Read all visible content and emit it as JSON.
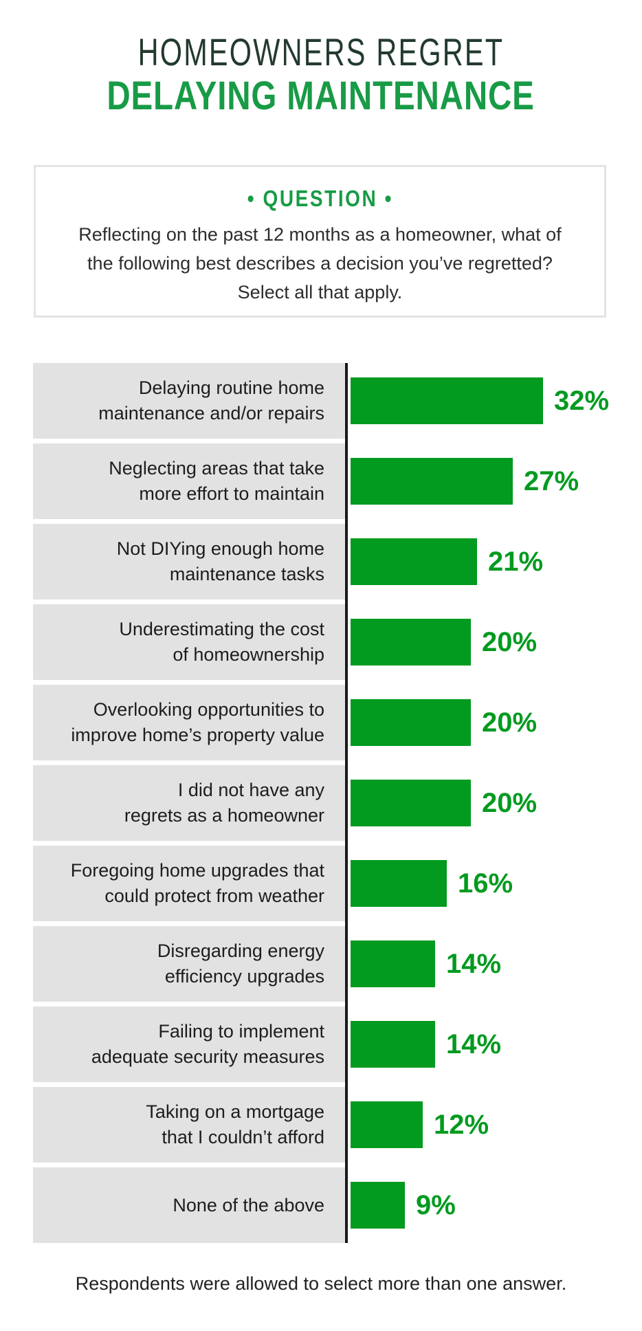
{
  "title": {
    "line1": "HOMEOWNERS REGRET",
    "line2": "DELAYING MAINTENANCE"
  },
  "question": {
    "heading": "• QUESTION •",
    "text": "Reflecting on the past 12 months as a homeowner, what of the following best describes a decision you’ve regretted? Select all that apply.",
    "lines": [
      "Reflecting on the past 12 months as a homeowner, what of",
      "the following best describes a decision you’ve regretted?",
      "Select all that apply."
    ]
  },
  "chart_data": {
    "type": "bar",
    "orientation": "horizontal",
    "title": "Homeowners Regret Delaying Maintenance",
    "categories": [
      "Delaying routine home maintenance and/or repairs",
      "Neglecting areas that take more effort to maintain",
      "Not DIYing enough home maintenance tasks",
      "Underestimating the cost of homeownership",
      "Overlooking opportunities to improve home’s property value",
      "I did not have any regrets as a homeowner",
      "Foregoing home upgrades that could protect from weather",
      "Disregarding energy efficiency upgrades",
      "Failing to implement adequate security measures",
      "Taking on a mortgage that I couldn’t afford",
      "None of the above"
    ],
    "category_lines": [
      [
        "Delaying routine home",
        "maintenance and/or repairs"
      ],
      [
        "Neglecting areas that take",
        "more effort to maintain"
      ],
      [
        "Not DIYing enough home",
        "maintenance tasks"
      ],
      [
        "Underestimating the cost",
        "of homeownership"
      ],
      [
        "Overlooking opportunities to",
        "improve home’s property value"
      ],
      [
        "I did not have any",
        "regrets as a homeowner"
      ],
      [
        "Foregoing home upgrades that",
        "could protect from weather"
      ],
      [
        "Disregarding energy",
        "efficiency upgrades"
      ],
      [
        "Failing to implement",
        "adequate security measures"
      ],
      [
        "Taking on a mortgage",
        "that I couldn’t afford"
      ],
      [
        "None of the above"
      ]
    ],
    "values": [
      32,
      27,
      21,
      20,
      20,
      20,
      16,
      14,
      14,
      12,
      9
    ],
    "value_labels": [
      "32%",
      "27%",
      "21%",
      "20%",
      "20%",
      "20%",
      "16%",
      "14%",
      "14%",
      "12%",
      "9%"
    ],
    "xlim": [
      0,
      32
    ],
    "grid": false,
    "legend": "none",
    "bar_color": "#029a1f",
    "value_label_color": "#029a1f",
    "category_bg_color": "#e2e2e2",
    "axis_color": "#1a1a1a"
  },
  "footer": {
    "note": "Respondents were allowed to select more than one answer."
  },
  "colors": {
    "title_dark": "#233a2e",
    "brand_green": "#189b46",
    "bar_green": "#029a1f",
    "row_gray": "#e2e2e2"
  }
}
